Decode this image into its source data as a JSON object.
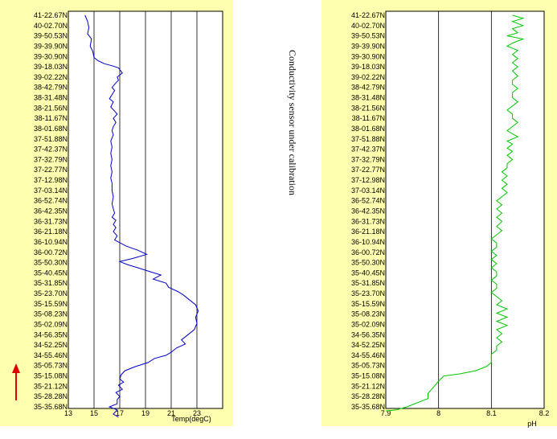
{
  "note": "Conductivity sensor under calibration",
  "colors": {
    "panel_bg": "#ffffb0",
    "temp_line": "#0000c8",
    "ph_line": "#00c800",
    "arrow": "#e00000",
    "grid": "#000000"
  },
  "chart_data": [
    {
      "type": "line",
      "xlabel": "Temp(degC)",
      "xlim": [
        13,
        25
      ],
      "xticks": [
        "13",
        "15",
        "17",
        "19",
        "21",
        "23"
      ],
      "xtick_values": [
        13,
        15,
        17,
        19,
        21,
        23
      ],
      "grid": "vertical",
      "y_categories": [
        "41-22.67N",
        "40-02.70N",
        "39-50.53N",
        "39-39.90N",
        "39-30.90N",
        "39-18.03N",
        "39-02.22N",
        "38-42.79N",
        "38-31.48N",
        "38-21.56N",
        "38-11.67N",
        "38-01.68N",
        "37-51.88N",
        "37-42.37N",
        "37-32.79N",
        "37-22.77N",
        "37-12.98N",
        "37-03.14N",
        "36-52.74N",
        "36-42.35N",
        "36-31.73N",
        "36-21.18N",
        "36-10.94N",
        "36-00.72N",
        "35-50.30N",
        "35-40.45N",
        "35-31.85N",
        "35-23.70N",
        "35-15.59N",
        "35-08.23N",
        "35-02.09N",
        "34-56.35N",
        "34-52.25N",
        "34-55.46N",
        "35-05.73N",
        "35-15.08N",
        "35-21.12N",
        "35-28.28N",
        "35-35.68N"
      ],
      "series": [
        {
          "values": [
            [
              14.3,
              0
            ],
            [
              14.5,
              0.6
            ],
            [
              14.6,
              1.2
            ],
            [
              14.5,
              1.8
            ],
            [
              14.8,
              2.3
            ],
            [
              14.7,
              3
            ],
            [
              14.9,
              3.5
            ],
            [
              15.0,
              4.1
            ],
            [
              15.3,
              4.4
            ],
            [
              15.8,
              4.7
            ],
            [
              16.4,
              4.9
            ],
            [
              16.9,
              5.1
            ],
            [
              17.2,
              5.6
            ],
            [
              16.8,
              6.0
            ],
            [
              16.9,
              6.3
            ],
            [
              16.6,
              6.7
            ],
            [
              16.4,
              7.0
            ],
            [
              16.6,
              7.3
            ],
            [
              16.4,
              7.7
            ],
            [
              16.2,
              8.1
            ],
            [
              16.5,
              8.4
            ],
            [
              16.3,
              8.9
            ],
            [
              16.6,
              9.3
            ],
            [
              16.8,
              9.6
            ],
            [
              16.5,
              10.0
            ],
            [
              16.7,
              10.4
            ],
            [
              16.5,
              10.8
            ],
            [
              16.4,
              11.2
            ],
            [
              16.5,
              11.6
            ],
            [
              16.3,
              12.2
            ],
            [
              16.4,
              12.8
            ],
            [
              16.3,
              13.4
            ],
            [
              16.4,
              14.0
            ],
            [
              16.3,
              14.6
            ],
            [
              16.4,
              15.2
            ],
            [
              16.3,
              15.8
            ],
            [
              16.4,
              16.3
            ],
            [
              16.4,
              17.0
            ],
            [
              16.5,
              17.6
            ],
            [
              16.4,
              18.3
            ],
            [
              16.5,
              18.8
            ],
            [
              16.6,
              19.2
            ],
            [
              16.4,
              19.6
            ],
            [
              16.7,
              19.9
            ],
            [
              16.5,
              20.3
            ],
            [
              16.7,
              20.6
            ],
            [
              16.5,
              21.0
            ],
            [
              16.8,
              21.4
            ],
            [
              16.6,
              21.8
            ],
            [
              17.5,
              22.4
            ],
            [
              18.4,
              22.8
            ],
            [
              19.1,
              23.2
            ],
            [
              18.0,
              23.6
            ],
            [
              17.0,
              23.9
            ],
            [
              17.6,
              24.2
            ],
            [
              18.4,
              24.5
            ],
            [
              19.4,
              24.9
            ],
            [
              20.2,
              25.2
            ],
            [
              19.6,
              25.6
            ],
            [
              20.6,
              26.0
            ],
            [
              20.8,
              26.4
            ],
            [
              21.5,
              26.8
            ],
            [
              21.9,
              27.1
            ],
            [
              22.4,
              27.6
            ],
            [
              22.9,
              28.1
            ],
            [
              23.1,
              28.7
            ],
            [
              22.9,
              29.3
            ],
            [
              23.0,
              29.9
            ],
            [
              22.8,
              30.5
            ],
            [
              22.3,
              31.0
            ],
            [
              21.8,
              31.5
            ],
            [
              22.1,
              31.9
            ],
            [
              21.4,
              32.3
            ],
            [
              21.0,
              32.7
            ],
            [
              20.6,
              33.0
            ],
            [
              19.7,
              33.3
            ],
            [
              19.2,
              33.7
            ],
            [
              18.2,
              34.1
            ],
            [
              17.4,
              34.5
            ],
            [
              17.1,
              34.9
            ],
            [
              17.0,
              35.3
            ],
            [
              17.3,
              35.6
            ],
            [
              16.9,
              35.9
            ],
            [
              17.2,
              36.3
            ],
            [
              16.7,
              36.6
            ],
            [
              17.0,
              37.0
            ],
            [
              16.8,
              37.3
            ],
            [
              16.8,
              37.7
            ],
            [
              16.2,
              38.0
            ],
            [
              16.8,
              38.3
            ],
            [
              16.5,
              38.7
            ],
            [
              16.9,
              39.0
            ]
          ]
        }
      ]
    },
    {
      "type": "line",
      "xlabel": "pH",
      "xlim": [
        7.9,
        8.2
      ],
      "xticks": [
        "7.9",
        "8",
        "8.1",
        "8.2"
      ],
      "xtick_values": [
        7.9,
        8.0,
        8.1,
        8.2
      ],
      "grid": "vertical",
      "y_categories": [
        "41-22.67N",
        "40-02.70N",
        "39-50.53N",
        "39-39.90N",
        "39-30.90N",
        "39-18.03N",
        "39-02.22N",
        "38-42.79N",
        "38-31.48N",
        "38-21.56N",
        "38-11.67N",
        "38-01.68N",
        "37-51.88N",
        "37-42.37N",
        "37-32.79N",
        "37-22.77N",
        "37-12.98N",
        "37-03.14N",
        "36-52.74N",
        "36-42.35N",
        "36-31.73N",
        "36-21.18N",
        "36-10.94N",
        "36-00.72N",
        "35-50.30N",
        "35-40.45N",
        "35-31.85N",
        "35-23.70N",
        "35-15.59N",
        "35-08.23N",
        "35-02.09N",
        "34-56.35N",
        "34-52.25N",
        "34-55.46N",
        "35-05.73N",
        "35-15.08N",
        "35-21.12N",
        "35-28.28N",
        "35-35.68N"
      ],
      "series": [
        {
          "values": [
            [
              8.14,
              0
            ],
            [
              8.16,
              0.3
            ],
            [
              8.14,
              0.6
            ],
            [
              8.16,
              1.0
            ],
            [
              8.14,
              1.3
            ],
            [
              8.15,
              1.7
            ],
            [
              8.13,
              2.0
            ],
            [
              8.16,
              2.3
            ],
            [
              8.14,
              2.7
            ],
            [
              8.13,
              3.0
            ],
            [
              8.15,
              3.4
            ],
            [
              8.14,
              3.8
            ],
            [
              8.15,
              4.2
            ],
            [
              8.14,
              4.6
            ],
            [
              8.15,
              5.0
            ],
            [
              8.14,
              5.4
            ],
            [
              8.15,
              5.9
            ],
            [
              8.14,
              6.3
            ],
            [
              8.14,
              6.7
            ],
            [
              8.15,
              7.1
            ],
            [
              8.14,
              7.5
            ],
            [
              8.14,
              8.0
            ],
            [
              8.15,
              8.4
            ],
            [
              8.14,
              8.8
            ],
            [
              8.13,
              9.2
            ],
            [
              8.14,
              9.6
            ],
            [
              8.14,
              10.0
            ],
            [
              8.15,
              10.4
            ],
            [
              8.14,
              10.8
            ],
            [
              8.13,
              11.2
            ],
            [
              8.14,
              11.5
            ],
            [
              8.15,
              11.8
            ],
            [
              8.13,
              12.2
            ],
            [
              8.14,
              12.5
            ],
            [
              8.13,
              12.9
            ],
            [
              8.14,
              13.2
            ],
            [
              8.13,
              13.6
            ],
            [
              8.14,
              14.0
            ],
            [
              8.13,
              14.4
            ],
            [
              8.13,
              14.8
            ],
            [
              8.12,
              15.2
            ],
            [
              8.13,
              15.6
            ],
            [
              8.12,
              16.0
            ],
            [
              8.13,
              16.4
            ],
            [
              8.12,
              16.8
            ],
            [
              8.13,
              17.2
            ],
            [
              8.12,
              17.6
            ],
            [
              8.11,
              18.0
            ],
            [
              8.12,
              18.4
            ],
            [
              8.11,
              18.8
            ],
            [
              8.12,
              19.2
            ],
            [
              8.11,
              19.6
            ],
            [
              8.12,
              20.0
            ],
            [
              8.11,
              20.5
            ],
            [
              8.12,
              20.9
            ],
            [
              8.11,
              21.3
            ],
            [
              8.1,
              21.7
            ],
            [
              8.11,
              22.1
            ],
            [
              8.11,
              22.5
            ],
            [
              8.1,
              22.9
            ],
            [
              8.11,
              23.3
            ],
            [
              8.1,
              23.7
            ],
            [
              8.11,
              24.1
            ],
            [
              8.1,
              24.5
            ],
            [
              8.11,
              24.9
            ],
            [
              8.11,
              25.3
            ],
            [
              8.1,
              25.7
            ],
            [
              8.11,
              26.1
            ],
            [
              8.11,
              26.5
            ],
            [
              8.1,
              26.9
            ],
            [
              8.11,
              27.3
            ],
            [
              8.12,
              27.7
            ],
            [
              8.11,
              28.1
            ],
            [
              8.13,
              28.5
            ],
            [
              8.11,
              28.9
            ],
            [
              8.13,
              29.3
            ],
            [
              8.11,
              29.7
            ],
            [
              8.13,
              30.1
            ],
            [
              8.11,
              30.5
            ],
            [
              8.12,
              30.9
            ],
            [
              8.11,
              31.3
            ],
            [
              8.12,
              31.7
            ],
            [
              8.11,
              32.1
            ],
            [
              8.11,
              32.5
            ],
            [
              8.1,
              32.9
            ],
            [
              8.1,
              33.3
            ],
            [
              8.1,
              33.7
            ],
            [
              8.09,
              34.1
            ],
            [
              8.07,
              34.5
            ],
            [
              8.04,
              34.8
            ],
            [
              8.01,
              35.0
            ],
            [
              8.0,
              35.5
            ],
            [
              7.99,
              36.1
            ],
            [
              7.98,
              36.7
            ],
            [
              7.98,
              37.2
            ],
            [
              7.96,
              37.6
            ],
            [
              7.94,
              38.0
            ],
            [
              7.92,
              38.3
            ],
            [
              7.9,
              38.4
            ]
          ]
        }
      ]
    }
  ]
}
